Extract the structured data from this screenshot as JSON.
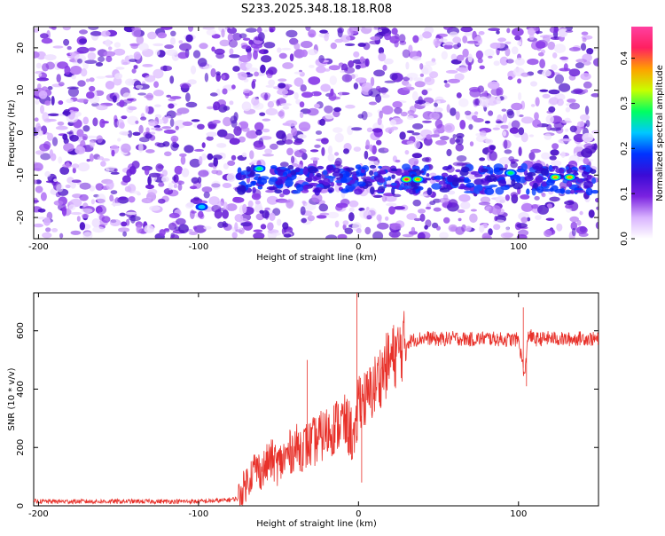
{
  "chart_data": [
    {
      "type": "heatmap",
      "title": "S233.2025.348.18.18.R08",
      "xlabel": "Height of straight line (km)",
      "ylabel": "Frequency (Hz)",
      "xlim": [
        -203,
        150
      ],
      "ylim": [
        -25,
        25
      ],
      "x_ticks": [
        -200,
        -100,
        0,
        100
      ],
      "y_ticks": [
        -20,
        -10,
        0,
        10,
        20
      ],
      "grid": false,
      "colorbar": {
        "label": "Normalized spectral amplitude",
        "range": [
          0,
          0.47
        ],
        "ticks": [
          0.0,
          0.1,
          0.2,
          0.3,
          0.4
        ]
      },
      "features": [
        {
          "description_band_center_hz": -11,
          "x_range_km": [
            -75,
            150
          ]
        },
        {
          "peak_x_km": 30,
          "peak_y_hz": -11,
          "amplitude": 0.45
        },
        {
          "peak_x_km": 37,
          "peak_y_hz": -11,
          "amplitude": 0.4
        },
        {
          "peak_x_km": 123,
          "peak_y_hz": -10.5,
          "amplitude": 0.42
        },
        {
          "peak_x_km": 132,
          "peak_y_hz": -10.5,
          "amplitude": 0.38
        },
        {
          "peak_x_km": 95,
          "peak_y_hz": -9.5,
          "amplitude": 0.22
        },
        {
          "peak_x_km": -62,
          "peak_y_hz": -8.5,
          "amplitude": 0.22
        },
        {
          "peak_x_km": -98,
          "peak_y_hz": -17.5,
          "amplitude": 0.15
        }
      ]
    },
    {
      "type": "line",
      "title": "",
      "xlabel": "Height of straight line (km)",
      "ylabel": "SNR (10 * v/v)",
      "xlim": [
        -203,
        150
      ],
      "ylim": [
        0,
        730
      ],
      "x_ticks": [
        -200,
        -100,
        0,
        100
      ],
      "y_ticks": [
        0,
        200,
        400,
        600
      ],
      "grid": false,
      "series": [
        {
          "color": "#e8312a",
          "x": [
            -203,
            -180,
            -150,
            -120,
            -100,
            -85,
            -75,
            -70,
            -65,
            -60,
            -55,
            -50,
            -45,
            -40,
            -35,
            -30,
            -25,
            -20,
            -15,
            -10,
            -5,
            -2,
            0,
            2,
            5,
            10,
            15,
            20,
            25,
            30,
            35,
            40,
            45,
            50,
            60,
            70,
            80,
            90,
            100,
            104,
            106,
            110,
            120,
            130,
            140,
            150
          ],
          "y": [
            15,
            15,
            15,
            15,
            15,
            18,
            25,
            80,
            130,
            120,
            160,
            140,
            170,
            200,
            200,
            210,
            230,
            250,
            270,
            290,
            260,
            200,
            380,
            370,
            360,
            410,
            460,
            500,
            530,
            560,
            570,
            575,
            575,
            570,
            575,
            570,
            575,
            570,
            570,
            440,
            590,
            570,
            575,
            570,
            575,
            570
          ],
          "spikes": [
            {
              "x": -1,
              "y": 730
            },
            {
              "x": 2,
              "y": 80
            },
            {
              "x": -32,
              "y": 500
            },
            {
              "x": 103,
              "y": 680
            },
            {
              "x": 105,
              "y": 410
            }
          ]
        }
      ]
    }
  ],
  "colors": {
    "line": "#e8312a",
    "colormap": [
      "#ffffff",
      "#d9b3ff",
      "#7a22e0",
      "#3b0bd6",
      "#0033ff",
      "#00c8ff",
      "#00ff60",
      "#c8ff00",
      "#ffa000",
      "#ff2060",
      "#ff40a0"
    ]
  }
}
